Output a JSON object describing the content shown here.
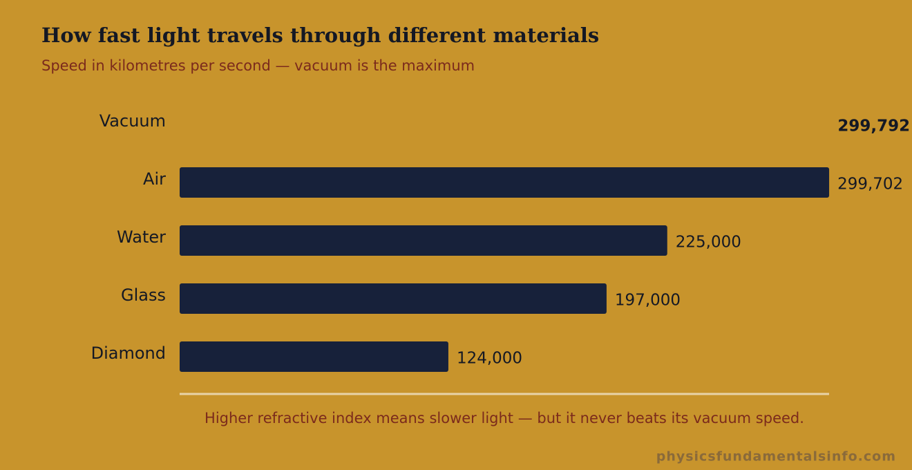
{
  "chart_data": {
    "type": "bar",
    "orientation": "horizontal",
    "title": "How fast light travels through different materials",
    "subtitle": "Speed in kilometres per second — vacuum is the maximum",
    "categories": [
      "Vacuum",
      "Air",
      "Water",
      "Glass",
      "Diamond"
    ],
    "values": [
      299792,
      299702,
      225000,
      197000,
      124000
    ],
    "value_labels": [
      "299,792",
      "299,702",
      "225,000",
      "197,000",
      "124,000"
    ],
    "colors": [
      "#c8942c",
      "#17213a",
      "#17213a",
      "#17213a",
      "#17213a"
    ],
    "xlim": [
      0,
      300000
    ],
    "annotation": "Higher refractive index means slower light — but it never beats its vacuum speed.",
    "source": "physicsfundamentalsinfo.com"
  }
}
